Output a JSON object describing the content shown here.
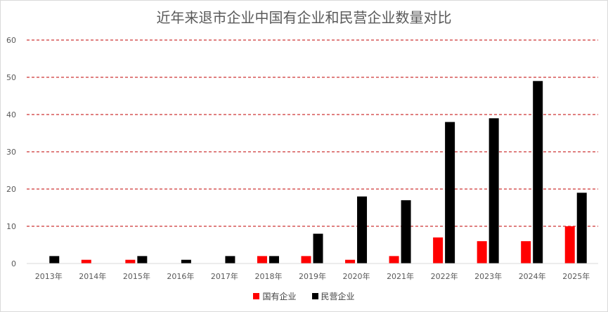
{
  "chart_data": {
    "type": "bar",
    "title": "近年来退市企业中国有企业和民营企业数量对比",
    "categories": [
      "2013年",
      "2014年",
      "2015年",
      "2016年",
      "2017年",
      "2018年",
      "2019年",
      "2020年",
      "2021年",
      "2022年",
      "2023年",
      "2024年",
      "2025年"
    ],
    "series": [
      {
        "name": "国有企业",
        "color": "#ff0000",
        "values": [
          0,
          1,
          1,
          0,
          0,
          2,
          2,
          1,
          2,
          7,
          6,
          6,
          10
        ]
      },
      {
        "name": "民营企业",
        "color": "#000000",
        "values": [
          2,
          0,
          2,
          1,
          2,
          2,
          8,
          18,
          17,
          38,
          39,
          49,
          19
        ]
      }
    ],
    "ylim": [
      0,
      60
    ],
    "yticks": [
      0,
      10,
      20,
      30,
      40,
      50,
      60
    ],
    "grid": true,
    "grid_color": "#c00000",
    "legend_position": "bottom"
  }
}
